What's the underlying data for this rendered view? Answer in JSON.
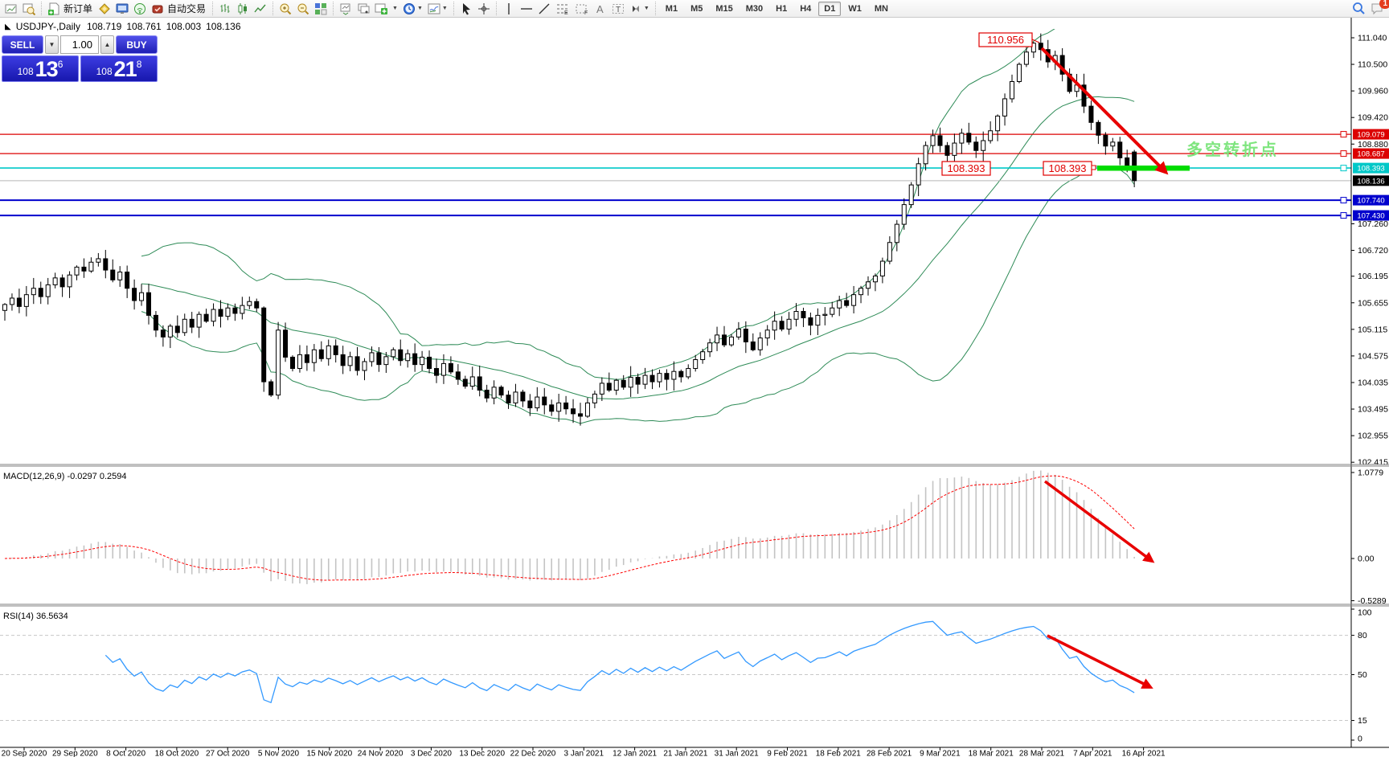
{
  "toolbar": {
    "new_order_label": "新订单",
    "autotrading_label": "自动交易",
    "timeframes": [
      "M1",
      "M5",
      "M15",
      "M30",
      "H1",
      "H4",
      "D1",
      "W1",
      "MN"
    ],
    "active_timeframe": "D1",
    "notifications_badge": "1"
  },
  "quote_line": {
    "symbol": "USDJPY-,Daily",
    "open": "108.719",
    "high": "108.761",
    "low": "108.003",
    "close": "108.136"
  },
  "trade_panel": {
    "sell_label": "SELL",
    "buy_label": "BUY",
    "volume": "1.00",
    "sell_big": "108",
    "sell_pips": "13",
    "sell_sup": "6",
    "buy_big": "108",
    "buy_pips": "21",
    "buy_sup": "8"
  },
  "chart_data": {
    "type": "candlestick",
    "symbol": "USDJPY-",
    "timeframe": "Daily",
    "title": "USDJPY-,Daily 108.719 108.761 108.003 108.136",
    "closes": [
      105.62,
      105.75,
      105.58,
      105.82,
      105.95,
      105.78,
      106.02,
      106.16,
      105.98,
      106.22,
      106.38,
      106.3,
      106.48,
      106.55,
      106.32,
      106.12,
      106.28,
      105.95,
      105.7,
      105.86,
      105.4,
      105.1,
      104.96,
      105.18,
      105.05,
      105.32,
      105.16,
      105.42,
      105.28,
      105.52,
      105.38,
      105.55,
      105.44,
      105.6,
      105.68,
      105.55,
      104.05,
      103.78,
      105.1,
      104.55,
      104.32,
      104.6,
      104.44,
      104.7,
      104.52,
      104.78,
      104.6,
      104.38,
      104.56,
      104.28,
      104.46,
      104.64,
      104.4,
      104.56,
      104.7,
      104.48,
      104.62,
      104.4,
      104.55,
      104.32,
      104.18,
      104.42,
      104.25,
      104.1,
      103.96,
      104.15,
      103.88,
      103.72,
      103.94,
      103.78,
      103.62,
      103.84,
      103.66,
      103.52,
      103.74,
      103.58,
      103.45,
      103.62,
      103.5,
      103.4,
      103.35,
      103.62,
      103.8,
      104.02,
      103.88,
      104.08,
      103.94,
      104.14,
      104.0,
      104.18,
      104.05,
      104.22,
      104.1,
      104.26,
      104.15,
      104.32,
      104.5,
      104.66,
      104.84,
      105.0,
      104.8,
      104.96,
      105.12,
      104.86,
      104.7,
      104.94,
      105.1,
      105.28,
      105.12,
      105.32,
      105.48,
      105.35,
      105.2,
      105.4,
      105.42,
      105.55,
      105.7,
      105.6,
      105.82,
      105.95,
      106.08,
      106.2,
      106.5,
      106.88,
      107.25,
      107.65,
      108.05,
      108.48,
      108.85,
      109.05,
      108.85,
      108.65,
      108.9,
      109.1,
      108.92,
      108.75,
      108.95,
      109.15,
      109.45,
      109.8,
      110.15,
      110.5,
      110.75,
      110.93,
      110.8,
      110.55,
      110.68,
      110.3,
      109.95,
      110.08,
      109.65,
      109.32,
      109.06,
      108.84,
      108.92,
      108.6,
      108.42,
      108.136
    ],
    "last_candle": {
      "open": 108.719,
      "high": 108.761,
      "low": 108.003,
      "close": 108.136
    },
    "peak_high": 110.956,
    "bollinger": {
      "period": 20,
      "deviation": 2,
      "color": "#2E8B57"
    },
    "y_axis_ticks": [
      111.04,
      110.5,
      109.96,
      109.42,
      108.88,
      107.26,
      106.72,
      106.195,
      105.655,
      105.115,
      104.575,
      104.035,
      103.495,
      102.955,
      102.415
    ],
    "price_lines": [
      {
        "price": 109.079,
        "badge": "109.079",
        "color": "#dc0000",
        "width": 1.2
      },
      {
        "price": 108.687,
        "badge": "108.687",
        "color": "#dc0000",
        "width": 1.2
      },
      {
        "price": 108.393,
        "badge": "108.393",
        "color": "#00c8c8",
        "width": 1.6
      },
      {
        "price": 107.74,
        "badge": "107.740",
        "color": "#0000cd",
        "width": 2
      },
      {
        "price": 107.43,
        "badge": "107.430",
        "color": "#0000cd",
        "width": 2
      }
    ],
    "current_price": {
      "value": 108.136,
      "badge": "108.136",
      "line_color": "#b8b8b8",
      "badge_color": "#000000"
    },
    "annotations": {
      "high_label": "110.956",
      "support_label_1": "108.393",
      "support_label_2": "108.393",
      "pivot_text": "多空转折点",
      "pivot_color": "#7fe57f",
      "support_zone_color": "#00dc00",
      "arrow_color": "#e80000"
    },
    "x_axis_dates": [
      "20 Sep 2020",
      "29 Sep 2020",
      "8 Oct 2020",
      "18 Oct 2020",
      "27 Oct 2020",
      "5 Nov 2020",
      "15 Nov 2020",
      "24 Nov 2020",
      "3 Dec 2020",
      "13 Dec 2020",
      "22 Dec 2020",
      "3 Jan 2021",
      "12 Jan 2021",
      "21 Jan 2021",
      "31 Jan 2021",
      "9 Feb 2021",
      "18 Feb 2021",
      "28 Feb 2021",
      "9 Mar 2021",
      "18 Mar 2021",
      "28 Mar 2021",
      "7 Apr 2021",
      "16 Apr 2021"
    ],
    "macd": {
      "label": "MACD(12,26,9)",
      "values_text": "-0.0297 0.2594",
      "fast": 12,
      "slow": 26,
      "signal": 9,
      "axis_labels": [
        "1.0779",
        "0.00",
        "-0.5289"
      ],
      "axis_values": [
        1.0779,
        0.0,
        -0.5289
      ],
      "hist_color": "#c4c4c4",
      "signal_color": "#ff0000"
    },
    "rsi": {
      "label": "RSI(14)",
      "value_text": "36.5634",
      "period": 14,
      "axis_labels": [
        "100",
        "80",
        "50",
        "15",
        "0"
      ],
      "axis_values": [
        100,
        80,
        50,
        15,
        0
      ],
      "level_lines": [
        80,
        50,
        15
      ],
      "line_color": "#3399ff"
    }
  }
}
